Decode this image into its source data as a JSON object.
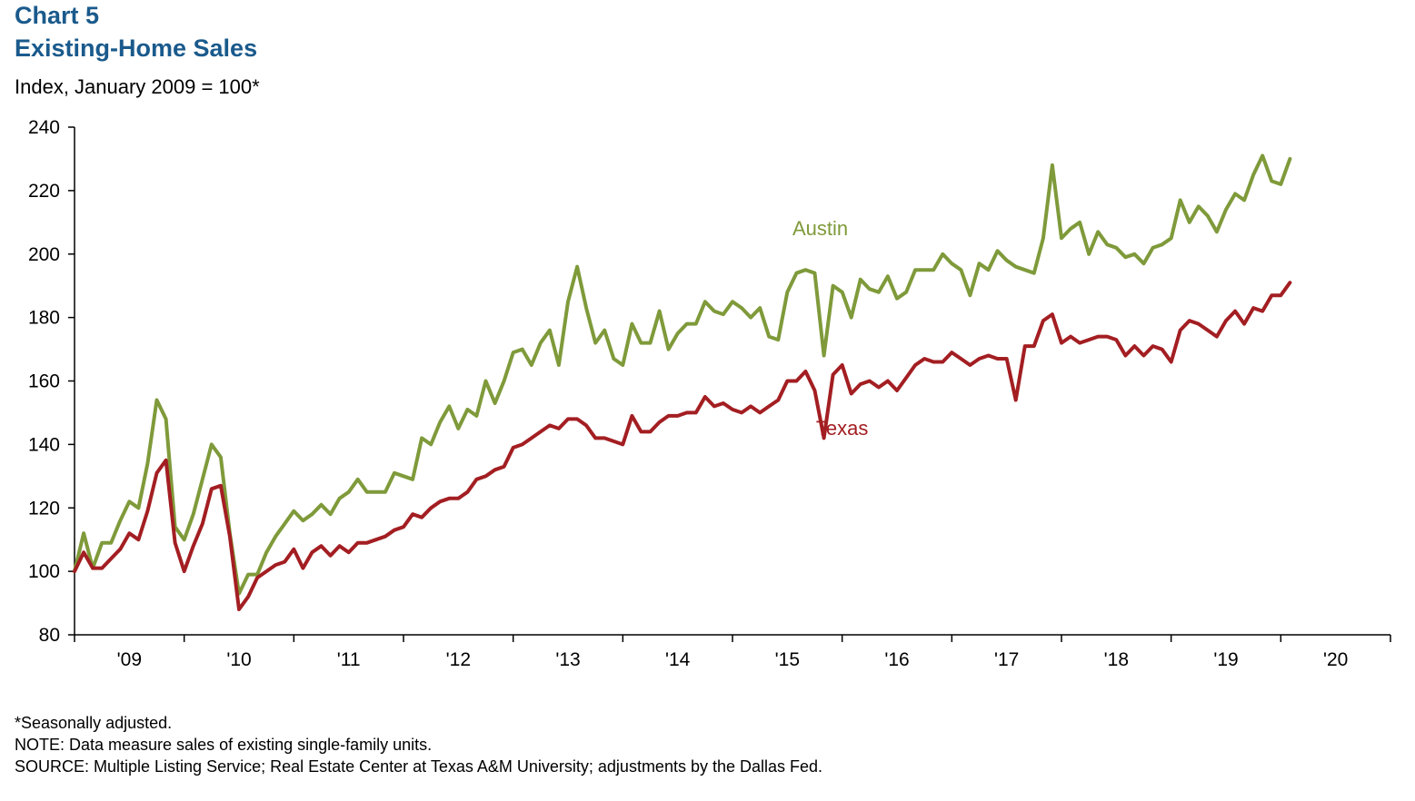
{
  "header": {
    "chart_number": "Chart 5",
    "title": "Existing-Home Sales",
    "subtitle": "Index, January 2009 = 100*"
  },
  "footer": {
    "note_1": "*Seasonally adjusted.",
    "note_2": "NOTE: Data measure sales of existing single-family units.",
    "note_3": "SOURCE: Multiple Listing Service; Real Estate Center at Texas A&M University; adjustments by the Dallas Fed."
  },
  "colors": {
    "austin": "#7f9a3a",
    "texas": "#a31e22",
    "title": "#1a5a8c",
    "axis": "#000000"
  },
  "chart_data": {
    "type": "line",
    "title": "Existing-Home Sales",
    "ylabel": "Index, January 2009 = 100*",
    "xlabel": "",
    "ylim": [
      80,
      240
    ],
    "yticks": [
      80,
      100,
      120,
      140,
      160,
      180,
      200,
      220,
      240
    ],
    "ytick_labels": [
      "80",
      "100",
      "120",
      "140",
      "160",
      "180",
      "200",
      "220",
      "240"
    ],
    "xlim": [
      2009.0,
      2021.0
    ],
    "xtick_labels": [
      "'09",
      "'10",
      "'11",
      "'12",
      "'13",
      "'14",
      "'15",
      "'16",
      "'17",
      "'18",
      "'19",
      "'20"
    ],
    "x_start": 2009.0,
    "x_step_months": 1,
    "grid": false,
    "legend": "inline labels",
    "series": [
      {
        "name": "Austin",
        "label_position": [
          2015.8,
          206
        ],
        "values": [
          100,
          112,
          101,
          109,
          109,
          116,
          122,
          120,
          134,
          154,
          148,
          114,
          110,
          118,
          129,
          140,
          136,
          112,
          93,
          99,
          99,
          106,
          111,
          115,
          119,
          116,
          118,
          121,
          118,
          123,
          125,
          129,
          125,
          125,
          125,
          131,
          130,
          129,
          142,
          140,
          147,
          152,
          145,
          151,
          149,
          160,
          153,
          160,
          169,
          170,
          165,
          172,
          176,
          165,
          185,
          196,
          183,
          172,
          176,
          167,
          165,
          178,
          172,
          172,
          182,
          170,
          175,
          178,
          178,
          185,
          182,
          181,
          185,
          183,
          180,
          183,
          174,
          173,
          188,
          194,
          195,
          194,
          168,
          190,
          188,
          180,
          192,
          189,
          188,
          193,
          186,
          188,
          195,
          195,
          195,
          200,
          197,
          195,
          187,
          197,
          195,
          201,
          198,
          196,
          195,
          194,
          205,
          228,
          205,
          208,
          210,
          200,
          207,
          203,
          202,
          199,
          200,
          197,
          202,
          203,
          205,
          217,
          210,
          215,
          212,
          207,
          214,
          219,
          217,
          225,
          231,
          223,
          222,
          230
        ]
      },
      {
        "name": "Texas",
        "label_position": [
          2016.0,
          143
        ],
        "values": [
          100,
          106,
          101,
          101,
          104,
          107,
          112,
          110,
          119,
          131,
          135,
          109,
          100,
          108,
          115,
          126,
          127,
          111,
          88,
          92,
          98,
          100,
          102,
          103,
          107,
          101,
          106,
          108,
          105,
          108,
          106,
          109,
          109,
          110,
          111,
          113,
          114,
          118,
          117,
          120,
          122,
          123,
          123,
          125,
          129,
          130,
          132,
          133,
          139,
          140,
          142,
          144,
          146,
          145,
          148,
          148,
          146,
          142,
          142,
          141,
          140,
          149,
          144,
          144,
          147,
          149,
          149,
          150,
          150,
          155,
          152,
          153,
          151,
          150,
          152,
          150,
          152,
          154,
          160,
          160,
          163,
          157,
          142,
          162,
          165,
          156,
          159,
          160,
          158,
          160,
          157,
          161,
          165,
          167,
          166,
          166,
          169,
          167,
          165,
          167,
          168,
          167,
          167,
          154,
          171,
          171,
          179,
          181,
          172,
          174,
          172,
          173,
          174,
          174,
          173,
          168,
          171,
          168,
          171,
          170,
          166,
          176,
          179,
          178,
          176,
          174,
          179,
          182,
          178,
          183,
          182,
          187,
          187,
          191
        ]
      }
    ]
  }
}
